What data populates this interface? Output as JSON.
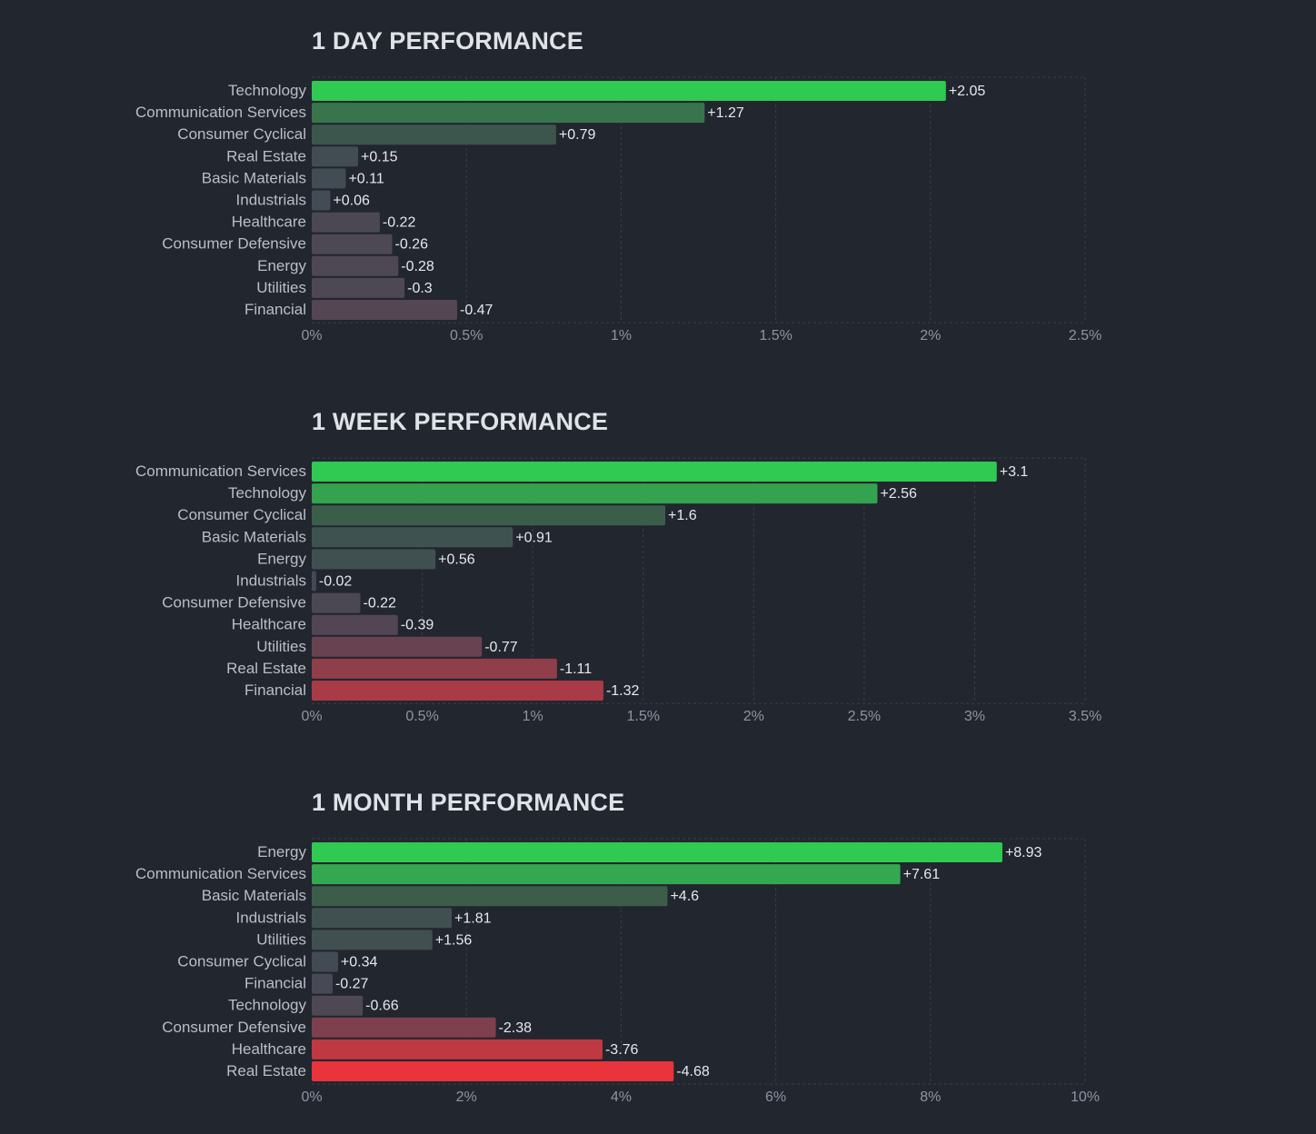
{
  "chart_data": [
    {
      "type": "bar",
      "orientation": "horizontal",
      "title": "1 DAY PERFORMANCE",
      "categories": [
        "Technology",
        "Communication Services",
        "Consumer Cyclical",
        "Real Estate",
        "Basic Materials",
        "Industrials",
        "Healthcare",
        "Consumer Defensive",
        "Energy",
        "Utilities",
        "Financial"
      ],
      "values": [
        2.05,
        1.27,
        0.79,
        0.15,
        0.11,
        0.06,
        -0.22,
        -0.26,
        -0.28,
        -0.3,
        -0.47
      ],
      "value_labels": [
        "+2.05",
        "+1.27",
        "+0.79",
        "+0.15",
        "+0.11",
        "+0.06",
        "-0.22",
        "-0.26",
        "-0.28",
        "-0.3",
        "-0.47"
      ],
      "xlim": [
        0,
        2.5
      ],
      "ticks": [
        0,
        0.5,
        1,
        1.5,
        2,
        2.5
      ],
      "tick_labels": [
        "0%",
        "0.5%",
        "1%",
        "1.5%",
        "2%",
        "2.5%"
      ],
      "grid": true,
      "bar_length": "absolute value"
    },
    {
      "type": "bar",
      "orientation": "horizontal",
      "title": "1 WEEK PERFORMANCE",
      "categories": [
        "Communication Services",
        "Technology",
        "Consumer Cyclical",
        "Basic Materials",
        "Energy",
        "Industrials",
        "Consumer Defensive",
        "Healthcare",
        "Utilities",
        "Real Estate",
        "Financial"
      ],
      "values": [
        3.1,
        2.56,
        1.6,
        0.91,
        0.56,
        -0.02,
        -0.22,
        -0.39,
        -0.77,
        -1.11,
        -1.32
      ],
      "value_labels": [
        "+3.1",
        "+2.56",
        "+1.6",
        "+0.91",
        "+0.56",
        "-0.02",
        "-0.22",
        "-0.39",
        "-0.77",
        "-1.11",
        "-1.32"
      ],
      "xlim": [
        0,
        3.5
      ],
      "ticks": [
        0,
        0.5,
        1,
        1.5,
        2,
        2.5,
        3,
        3.5
      ],
      "tick_labels": [
        "0%",
        "0.5%",
        "1%",
        "1.5%",
        "2%",
        "2.5%",
        "3%",
        "3.5%"
      ],
      "grid": true,
      "bar_length": "absolute value"
    },
    {
      "type": "bar",
      "orientation": "horizontal",
      "title": "1 MONTH PERFORMANCE",
      "categories": [
        "Energy",
        "Communication Services",
        "Basic Materials",
        "Industrials",
        "Utilities",
        "Consumer Cyclical",
        "Financial",
        "Technology",
        "Consumer Defensive",
        "Healthcare",
        "Real Estate"
      ],
      "values": [
        8.93,
        7.61,
        4.6,
        1.81,
        1.56,
        0.34,
        -0.27,
        -0.66,
        -2.38,
        -3.76,
        -4.68
      ],
      "value_labels": [
        "+8.93",
        "+7.61",
        "+4.6",
        "+1.81",
        "+1.56",
        "+0.34",
        "-0.27",
        "-0.66",
        "-2.38",
        "-3.76",
        "-4.68"
      ],
      "xlim": [
        0,
        10
      ],
      "ticks": [
        0,
        2,
        4,
        6,
        8,
        10
      ],
      "tick_labels": [
        "0%",
        "2%",
        "4%",
        "6%",
        "8%",
        "10%"
      ],
      "grid": true,
      "bar_length": "absolute value"
    }
  ],
  "colors": {
    "background": "#22262f",
    "positive_strong": "#30c952",
    "positive_weak": "#3b5a4a",
    "neutral": "#434a55",
    "negative_weak": "#5c4453",
    "negative_strong": "#e8343a"
  }
}
